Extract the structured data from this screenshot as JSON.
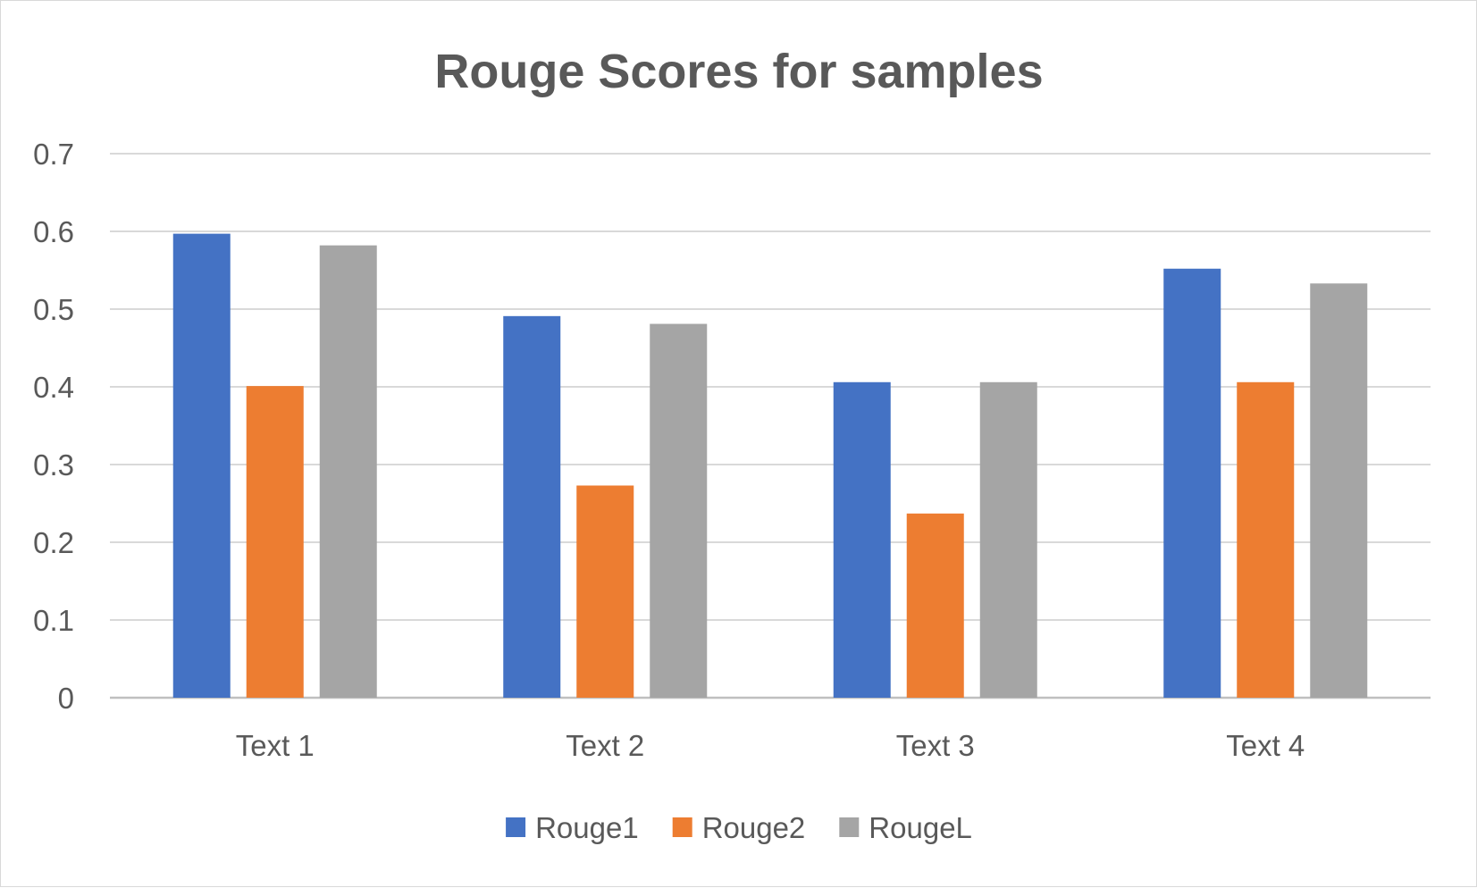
{
  "chart_data": {
    "type": "bar",
    "title": "Rouge Scores for samples",
    "categories": [
      "Text 1",
      "Text 2",
      "Text 3",
      "Text 4"
    ],
    "series": [
      {
        "name": "Rouge1",
        "color": "#4472C4",
        "values": [
          0.597,
          0.491,
          0.406,
          0.552
        ]
      },
      {
        "name": "Rouge2",
        "color": "#ED7D31",
        "values": [
          0.401,
          0.273,
          0.237,
          0.406
        ]
      },
      {
        "name": "RougeL",
        "color": "#A5A5A5",
        "values": [
          0.582,
          0.481,
          0.406,
          0.533
        ]
      }
    ],
    "ylim": [
      0,
      0.7
    ],
    "yticks": [
      "0",
      "0.1",
      "0.2",
      "0.3",
      "0.4",
      "0.5",
      "0.6",
      "0.7"
    ],
    "xlabel": "",
    "ylabel": "",
    "grid": true,
    "legend": "bottom"
  }
}
